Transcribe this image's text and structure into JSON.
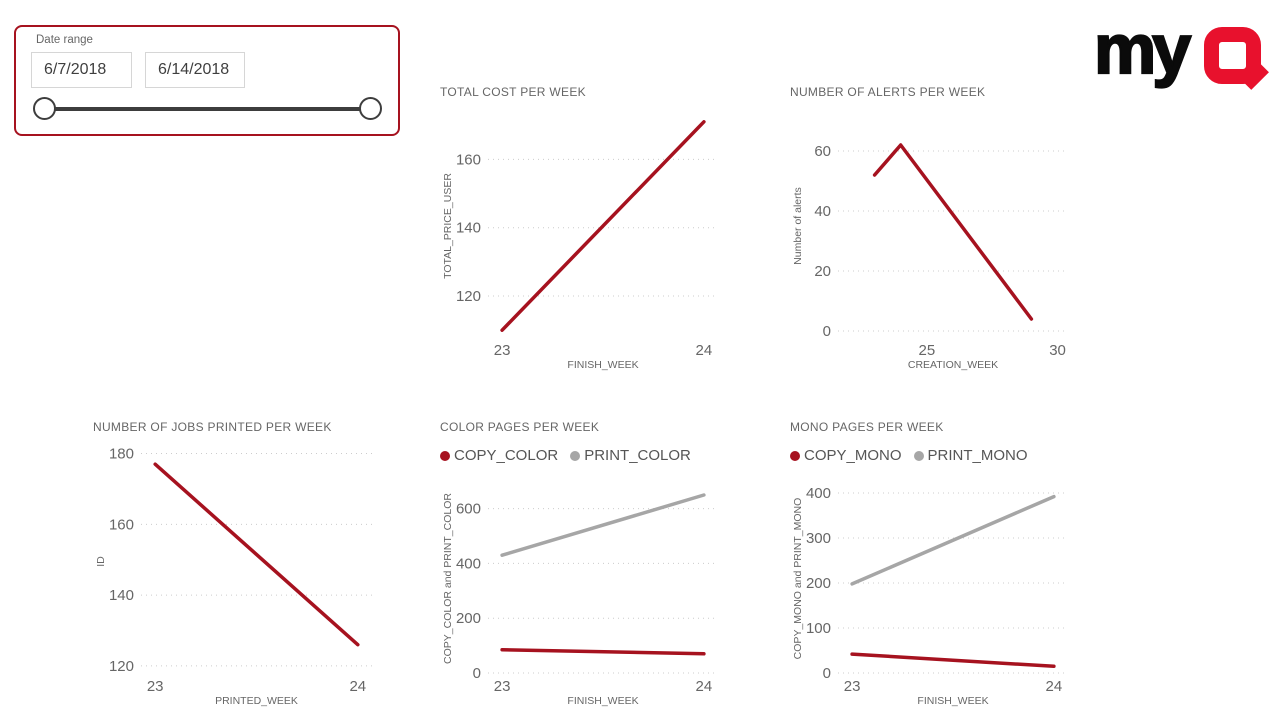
{
  "background": "#ffffff",
  "slicer": {
    "label": "Date range",
    "start_date": "6/7/2018",
    "end_date": "6/14/2018",
    "border_color": "#a6121f"
  },
  "logo": {
    "my": "my",
    "q": "Q",
    "black": "#0b0b0b",
    "red": "#e8112d"
  },
  "colors": {
    "series_red": "#a6121f",
    "series_gray": "#a6a6a6",
    "text_gray": "#666666",
    "legend_text": "#555555",
    "gridline": "#cccccc"
  },
  "chart_data": [
    {
      "type": "line",
      "title": "TOTAL COST PER WEEK",
      "xlabel": "FINISH_WEEK",
      "ylabel": "TOTAL_PRICE_USER",
      "xlim": [
        22.93,
        24.07
      ],
      "ylim": [
        108,
        173
      ],
      "x_ticks": [
        23,
        24
      ],
      "y_ticks": [
        120,
        140,
        160
      ],
      "grid": true,
      "legend": false,
      "series": [
        {
          "name": "TOTAL_PRICE_USER",
          "color": "#a6121f",
          "points": [
            [
              23,
              110
            ],
            [
              24,
              171
            ]
          ]
        }
      ]
    },
    {
      "type": "line",
      "title": "NUMBER OF ALERTS PER WEEK",
      "xlabel": "CREATION_WEEK",
      "ylabel": "Number of alerts",
      "xlim": [
        21.6,
        30.4
      ],
      "ylim": [
        -2,
        72
      ],
      "x_ticks": [
        25,
        30
      ],
      "y_ticks": [
        0,
        20,
        40,
        60
      ],
      "grid": true,
      "legend": false,
      "series": [
        {
          "name": "Number of alerts",
          "color": "#a6121f",
          "points": [
            [
              23,
              52
            ],
            [
              24,
              62
            ],
            [
              29,
              4
            ]
          ]
        }
      ]
    },
    {
      "type": "line",
      "title": "NUMBER OF JOBS PRINTED PER WEEK",
      "xlabel": "PRINTED_WEEK",
      "ylabel": "ID",
      "xlim": [
        22.93,
        24.07
      ],
      "ylim": [
        118,
        181
      ],
      "x_ticks": [
        23,
        24
      ],
      "y_ticks": [
        120,
        140,
        160,
        180
      ],
      "grid": true,
      "legend": false,
      "series": [
        {
          "name": "ID",
          "color": "#a6121f",
          "points": [
            [
              23,
              177
            ],
            [
              24,
              126
            ]
          ]
        }
      ]
    },
    {
      "type": "line",
      "title": "COLOR PAGES PER WEEK",
      "xlabel": "FINISH_WEEK",
      "ylabel": "COPY_COLOR and PRINT_COLOR",
      "xlim": [
        22.93,
        24.07
      ],
      "ylim": [
        0,
        690
      ],
      "x_ticks": [
        23,
        24
      ],
      "y_ticks": [
        0,
        200,
        400,
        600
      ],
      "grid": true,
      "legend": true,
      "legend_position": "top",
      "series": [
        {
          "name": "COPY_COLOR",
          "color": "#a6121f",
          "points": [
            [
              23,
              85
            ],
            [
              24,
              70
            ]
          ]
        },
        {
          "name": "PRINT_COLOR",
          "color": "#a6a6a6",
          "points": [
            [
              23,
              430
            ],
            [
              24,
              650
            ]
          ]
        }
      ]
    },
    {
      "type": "line",
      "title": "MONO PAGES PER WEEK",
      "xlabel": "FINISH_WEEK",
      "ylabel": "COPY_MONO and PRINT_MONO",
      "xlim": [
        22.93,
        24.07
      ],
      "ylim": [
        0,
        420
      ],
      "x_ticks": [
        23,
        24
      ],
      "y_ticks": [
        0,
        100,
        200,
        300,
        400
      ],
      "grid": true,
      "legend": true,
      "legend_position": "top",
      "series": [
        {
          "name": "COPY_MONO",
          "color": "#a6121f",
          "points": [
            [
              23,
              42
            ],
            [
              24,
              15
            ]
          ]
        },
        {
          "name": "PRINT_MONO",
          "color": "#a6a6a6",
          "points": [
            [
              23,
              198
            ],
            [
              24,
              392
            ]
          ]
        }
      ]
    }
  ]
}
